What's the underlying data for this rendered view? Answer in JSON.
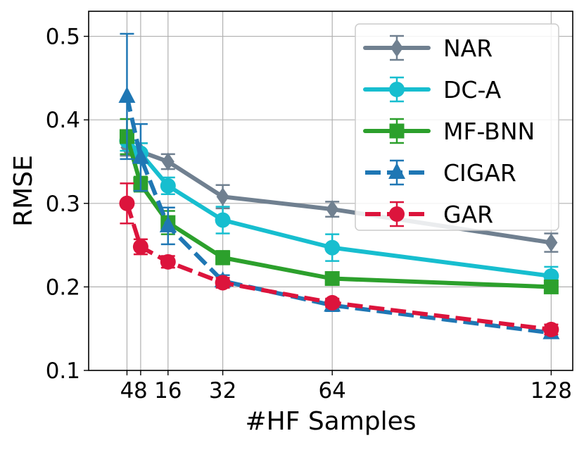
{
  "chart_data": {
    "type": "line",
    "title": "",
    "xlabel": "#HF Samples",
    "ylabel": "RMSE",
    "xlim": [
      -7.2,
      134.3
    ],
    "ylim": [
      0.1,
      0.53
    ],
    "xticks": [
      4,
      8,
      16,
      32,
      64,
      128
    ],
    "xtick_labels": [
      "4",
      "8",
      "16",
      "32",
      "64",
      "128"
    ],
    "yticks": [
      0.1,
      0.2,
      0.3,
      0.4,
      0.5
    ],
    "ytick_labels": [
      "0.1",
      "0.2",
      "0.3",
      "0.4",
      "0.5"
    ],
    "grid": true,
    "legend_position": "upper right",
    "x": [
      4,
      8,
      16,
      32,
      64,
      128
    ],
    "series": [
      {
        "name": "NAR",
        "color": "#708090",
        "marker": "diamond",
        "dashed": false,
        "values": [
          0.367,
          0.362,
          0.35,
          0.308,
          0.293,
          0.253
        ],
        "errors": [
          0.01,
          0.01,
          0.009,
          0.014,
          0.009,
          0.011
        ]
      },
      {
        "name": "DC-A",
        "color": "#17becf",
        "marker": "circle",
        "dashed": false,
        "values": [
          0.375,
          0.36,
          0.321,
          0.28,
          0.247,
          0.213
        ],
        "errors": [
          0.012,
          0.012,
          0.01,
          0.016,
          0.016,
          0.011
        ]
      },
      {
        "name": "MF-BNN",
        "color": "#2ca02c",
        "marker": "square",
        "dashed": false,
        "values": [
          0.38,
          0.323,
          0.277,
          0.235,
          0.21,
          0.2
        ],
        "errors": [
          0.021,
          0.009,
          0.014,
          0.008,
          0.006,
          0.005
        ]
      },
      {
        "name": "CIGAR",
        "color": "#1f77b4",
        "marker": "triangle",
        "dashed": true,
        "values": [
          0.428,
          0.355,
          0.273,
          0.207,
          0.178,
          0.145
        ],
        "errors": [
          0.075,
          0.04,
          0.022,
          0.007,
          0.007,
          0.006
        ]
      },
      {
        "name": "GAR",
        "color": "#dc143c",
        "marker": "circle",
        "dashed": true,
        "values": [
          0.3,
          0.248,
          0.23,
          0.205,
          0.181,
          0.149
        ],
        "errors": [
          0.024,
          0.009,
          0.007,
          0.006,
          0.005,
          0.006
        ]
      }
    ]
  }
}
